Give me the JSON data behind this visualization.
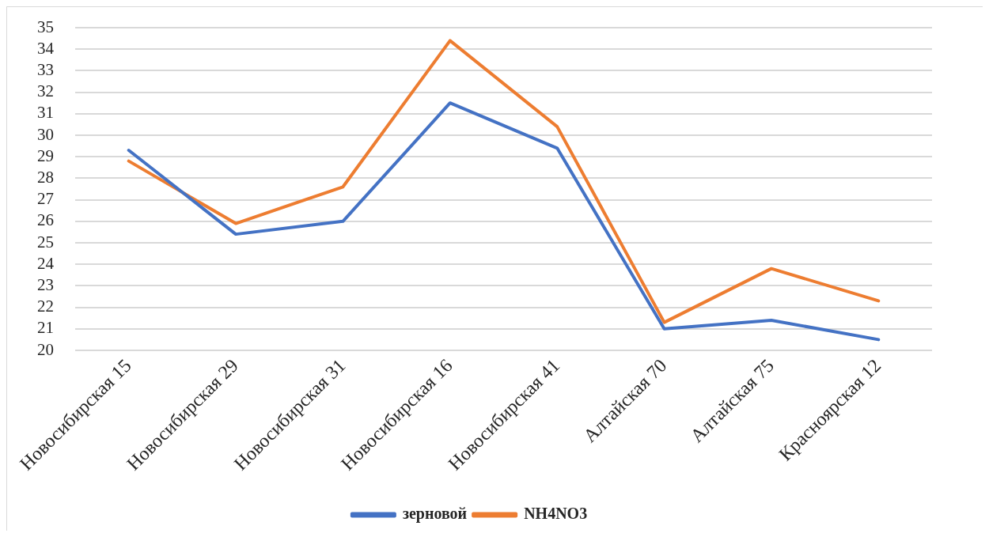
{
  "chart_data": {
    "type": "line",
    "categories": [
      "Новосибирская 15",
      "Новосибирская 29",
      "Новосибирская 31",
      "Новосибирская 16",
      "Новосибирская 41",
      "Алтайская 70",
      "Алтайская 75",
      "Красноярская 12"
    ],
    "series": [
      {
        "name": "зерновой",
        "color": "#4472c4",
        "values": [
          29.3,
          25.4,
          26.0,
          31.5,
          29.4,
          21.0,
          21.4,
          20.5
        ]
      },
      {
        "name": "NH4NO3",
        "color": "#ed7d31",
        "values": [
          28.8,
          25.9,
          27.6,
          34.4,
          30.4,
          21.3,
          23.8,
          22.3
        ]
      }
    ],
    "ylim": [
      20,
      35
    ],
    "yticks": [
      20,
      21,
      22,
      23,
      24,
      25,
      26,
      27,
      28,
      29,
      30,
      31,
      32,
      33,
      34,
      35
    ],
    "grid": "y",
    "legend": "bottom",
    "marker": "none",
    "line_style": "solid"
  }
}
